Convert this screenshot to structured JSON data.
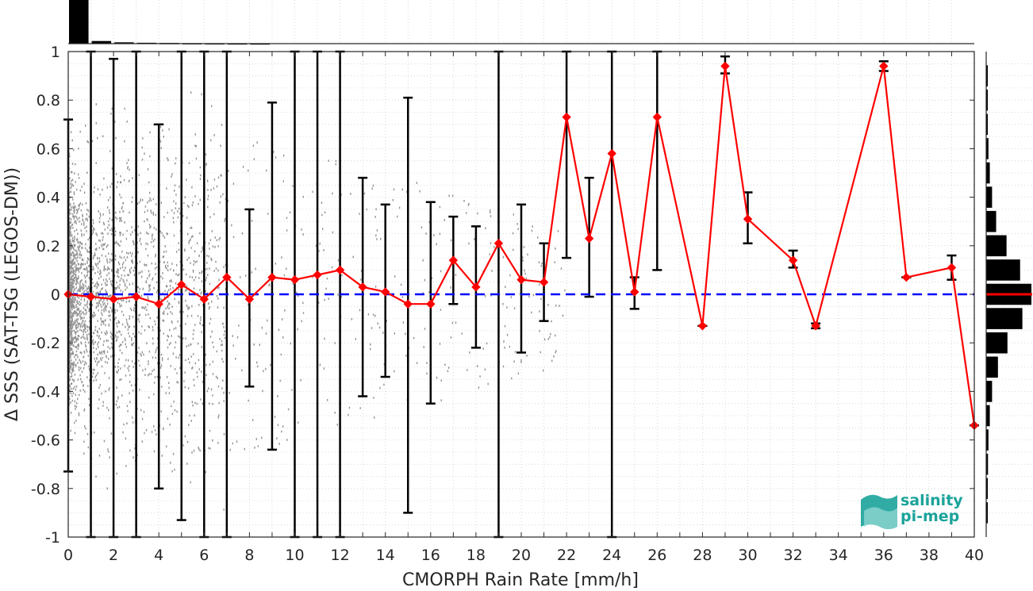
{
  "chart_data": {
    "type": "line",
    "title": "",
    "xlabel": "CMORPH Rain Rate [mm/h]",
    "ylabel": "Δ SSS (SAT-TSG (LEGOS-DM))",
    "xlim": [
      0,
      40
    ],
    "ylim": [
      -1,
      1
    ],
    "xticks": [
      0,
      2,
      4,
      6,
      8,
      10,
      12,
      14,
      16,
      18,
      20,
      22,
      24,
      26,
      28,
      30,
      32,
      34,
      36,
      38,
      40
    ],
    "yticks": [
      -1,
      -0.8,
      -0.6,
      -0.4,
      -0.2,
      0,
      0.2,
      0.4,
      0.6,
      0.8,
      1
    ],
    "ytick_labels": [
      "-1",
      "-0.8",
      "-0.6",
      "-0.4",
      "-0.2",
      "0",
      "0.2",
      "0.4",
      "0.6",
      "0.8",
      "1"
    ],
    "grid": true,
    "reference_line": {
      "y": 0,
      "color": "#0000ff",
      "style": "dashed"
    },
    "series": [
      {
        "color": "#ff0000",
        "marker": "diamond",
        "points": [
          {
            "x": 0,
            "y": 0.0,
            "lo": -0.73,
            "hi": 0.72
          },
          {
            "x": 1,
            "y": -0.01,
            "lo": -1.0,
            "hi": 1.0
          },
          {
            "x": 2,
            "y": -0.02,
            "lo": -1.0,
            "hi": 0.97
          },
          {
            "x": 3,
            "y": -0.01,
            "lo": -1.0,
            "hi": 1.0
          },
          {
            "x": 4,
            "y": -0.04,
            "lo": -0.8,
            "hi": 0.7
          },
          {
            "x": 5,
            "y": 0.04,
            "lo": -0.93,
            "hi": 1.0
          },
          {
            "x": 6,
            "y": -0.02,
            "lo": -1.0,
            "hi": 1.0
          },
          {
            "x": 7,
            "y": 0.07,
            "lo": -1.0,
            "hi": 1.0
          },
          {
            "x": 8,
            "y": -0.02,
            "lo": -0.38,
            "hi": 0.35
          },
          {
            "x": 9,
            "y": 0.07,
            "lo": -0.64,
            "hi": 0.79
          },
          {
            "x": 10,
            "y": 0.06,
            "lo": -1.0,
            "hi": 1.0
          },
          {
            "x": 11,
            "y": 0.08,
            "lo": -1.0,
            "hi": 1.0
          },
          {
            "x": 12,
            "y": 0.1,
            "lo": -1.0,
            "hi": 1.0
          },
          {
            "x": 13,
            "y": 0.03,
            "lo": -0.42,
            "hi": 0.48
          },
          {
            "x": 14,
            "y": 0.01,
            "lo": -0.34,
            "hi": 0.37
          },
          {
            "x": 15,
            "y": -0.04,
            "lo": -0.9,
            "hi": 0.81
          },
          {
            "x": 16,
            "y": -0.04,
            "lo": -0.45,
            "hi": 0.38
          },
          {
            "x": 17,
            "y": 0.14,
            "lo": -0.04,
            "hi": 0.32
          },
          {
            "x": 18,
            "y": 0.03,
            "lo": -0.22,
            "hi": 0.28
          },
          {
            "x": 19,
            "y": 0.21,
            "lo": -1.0,
            "hi": 1.0
          },
          {
            "x": 20,
            "y": 0.06,
            "lo": -0.24,
            "hi": 0.37
          },
          {
            "x": 21,
            "y": 0.05,
            "lo": -0.11,
            "hi": 0.21
          },
          {
            "x": 22,
            "y": 0.73,
            "lo": 0.15,
            "hi": 1.0
          },
          {
            "x": 23,
            "y": 0.23,
            "lo": -0.01,
            "hi": 0.48
          },
          {
            "x": 24,
            "y": 0.58,
            "lo": -1.0,
            "hi": 1.0
          },
          {
            "x": 25,
            "y": 0.01,
            "lo": -0.06,
            "hi": 0.07
          },
          {
            "x": 26,
            "y": 0.73,
            "lo": 0.1,
            "hi": 1.0
          },
          {
            "x": 28,
            "y": -0.13,
            "lo": -0.13,
            "hi": -0.13
          },
          {
            "x": 29,
            "y": 0.94,
            "lo": 0.91,
            "hi": 0.98
          },
          {
            "x": 30,
            "y": 0.31,
            "lo": 0.21,
            "hi": 0.42
          },
          {
            "x": 32,
            "y": 0.14,
            "lo": 0.11,
            "hi": 0.18
          },
          {
            "x": 33,
            "y": -0.13,
            "lo": -0.14,
            "hi": -0.12
          },
          {
            "x": 36,
            "y": 0.94,
            "lo": 0.92,
            "hi": 0.96
          },
          {
            "x": 37,
            "y": 0.07,
            "lo": 0.07,
            "hi": 0.07
          },
          {
            "x": 39,
            "y": 0.11,
            "lo": 0.06,
            "hi": 0.16
          },
          {
            "x": 40,
            "y": -0.54,
            "lo": -0.54,
            "hi": -0.54
          }
        ]
      }
    ],
    "scatter_color": "#808080",
    "top_histogram": {
      "bins_x": [
        0,
        1,
        2,
        3,
        4,
        5,
        6,
        7,
        8
      ],
      "relative_counts": [
        1.0,
        0.06,
        0.03,
        0.02,
        0.015,
        0.01,
        0.008,
        0.006,
        0.005
      ]
    },
    "right_histogram": {
      "bins_y": [
        -0.9,
        -0.8,
        -0.7,
        -0.6,
        -0.5,
        -0.4,
        -0.3,
        -0.2,
        -0.1,
        0.0,
        0.1,
        0.2,
        0.3,
        0.4,
        0.5,
        0.6,
        0.7,
        0.8,
        0.9
      ],
      "relative_counts": [
        0.02,
        0.03,
        0.04,
        0.05,
        0.08,
        0.13,
        0.26,
        0.47,
        0.8,
        1.0,
        0.75,
        0.45,
        0.22,
        0.13,
        0.08,
        0.05,
        0.03,
        0.02,
        0.01
      ],
      "median_line_color": "#ff0000"
    }
  },
  "logo": {
    "line1": "salinity",
    "line2": "pi-mep",
    "color": "#1aa39a"
  }
}
